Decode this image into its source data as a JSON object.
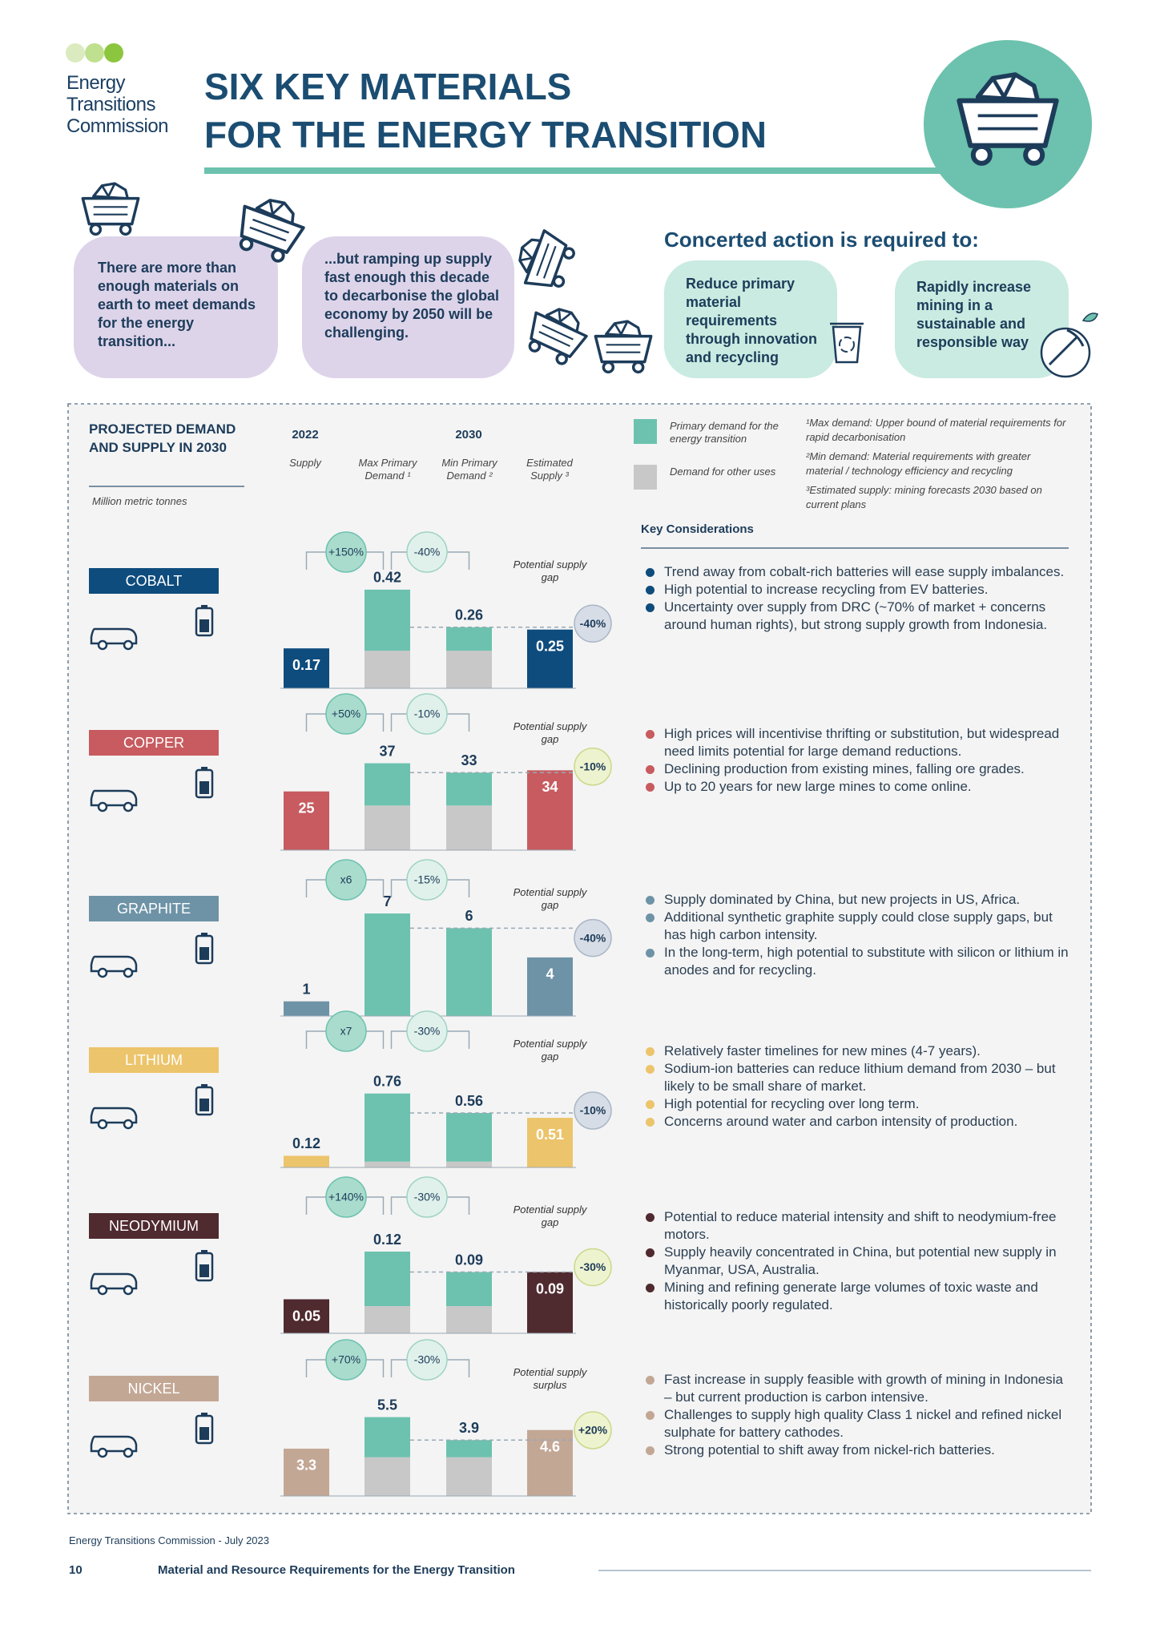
{
  "header": {
    "logo": [
      "Energy",
      "Transitions",
      "Commission"
    ],
    "title": [
      "SIX KEY MATERIALS",
      "FOR THE ENERGY TRANSITION"
    ]
  },
  "intro": {
    "statements": [
      "There are more than enough materials on earth to meet demands for the energy transition...",
      "...but ramping up supply fast enough this decade to decarbonise the global economy by 2050 will be challenging."
    ],
    "action_heading": "Concerted action is required to:",
    "actions": [
      "Reduce primary material requirements through innovation and recycling",
      "Rapidly increase mining in a sustainable and responsible way"
    ]
  },
  "panel": {
    "title": "PROJECTED DEMAND AND SUPPLY IN 2030",
    "units": "Million metric tonnes",
    "years": [
      "2022",
      "2030"
    ],
    "column_headers": [
      "Supply",
      "Max Primary Demand ¹",
      "Min Primary Demand ²",
      "Estimated Supply ³"
    ],
    "legend": [
      {
        "label": "Primary demand for the energy transition",
        "color": "#6cc2ae"
      },
      {
        "label": "Demand for other uses",
        "color": "#c8c8c8"
      }
    ],
    "footnotes": [
      "¹Max demand: Upper bound of material requirements for rapid decarbonisation",
      "²Min demand: Material requirements with greater material / technology efficiency and recycling",
      "³Estimated supply: mining forecasts 2030 based on current plans"
    ],
    "considerations_heading": "Key Considerations"
  },
  "chart_data": [
    {
      "type": "bar",
      "title": "COBALT",
      "color": "#0e4c7d",
      "ylim": [
        0,
        0.58
      ],
      "supply_2022": 0.17,
      "max_demand": {
        "primary": 0.26,
        "other": 0.16,
        "total_label": "0.42"
      },
      "min_demand": {
        "primary": 0.1,
        "other": 0.16,
        "total_label": "0.26"
      },
      "estimated_supply": 0.25,
      "change_to_max": "+150%",
      "change_to_min": "-40%",
      "gap_note": "Potential supply gap",
      "gap": "-40%",
      "considerations": [
        "Trend away from cobalt-rich batteries will ease supply imbalances.",
        "High potential to increase recycling from EV batteries.",
        "Uncertainty over supply from DRC (~70% of market + concerns around human rights), but strong supply growth from Indonesia."
      ]
    },
    {
      "type": "bar",
      "title": "COPPER",
      "color": "#c75b5f",
      "ylim": [
        0,
        58
      ],
      "supply_2022": 25,
      "max_demand": {
        "primary": 18,
        "other": 19,
        "total_label": "37"
      },
      "min_demand": {
        "primary": 14,
        "other": 19,
        "total_label": "33"
      },
      "estimated_supply": 34,
      "change_to_max": "+50%",
      "change_to_min": "-10%",
      "gap_note": "Potential supply gap",
      "gap": "-10%",
      "considerations": [
        "High prices will incentivise thrifting or substitution, but widespread need limits potential for large demand reductions.",
        "Declining production from existing mines, falling ore grades.",
        "Up to 20 years for new large mines to come online."
      ]
    },
    {
      "type": "bar",
      "title": "GRAPHITE",
      "color": "#6e93a7",
      "ylim": [
        0,
        9.3
      ],
      "supply_2022": 1,
      "max_demand": {
        "primary": 7,
        "other": 0,
        "total_label": "7"
      },
      "min_demand": {
        "primary": 6,
        "other": 0,
        "total_label": "6"
      },
      "estimated_supply": 4,
      "change_to_max": "x6",
      "change_to_min": "-15%",
      "gap_note": "Potential supply gap",
      "gap": "-40%",
      "considerations": [
        "Supply dominated by China, but new projects in US, Africa.",
        "Additional synthetic graphite supply could close supply gaps, but has high carbon intensity.",
        "In the long-term, high potential to substitute with silicon or lithium in anodes and for recycling."
      ]
    },
    {
      "type": "bar",
      "title": "LITHIUM",
      "color": "#ecc46b",
      "ylim": [
        0,
        1.4
      ],
      "supply_2022": 0.12,
      "max_demand": {
        "primary": 0.7,
        "other": 0.06,
        "total_label": "0.76"
      },
      "min_demand": {
        "primary": 0.5,
        "other": 0.06,
        "total_label": "0.56"
      },
      "estimated_supply": 0.51,
      "change_to_max": "x7",
      "change_to_min": "-30%",
      "gap_note": "Potential supply gap",
      "gap": "-10%",
      "considerations": [
        "Relatively faster timelines for new mines (4-7 years).",
        "Sodium-ion batteries can reduce lithium demand from 2030 – but likely to be small share of market.",
        "High potential for recycling over long term.",
        "Concerns around water and carbon intensity of production."
      ]
    },
    {
      "type": "bar",
      "title": "NEODYMIUM",
      "color": "#4f2a2f",
      "ylim": [
        0,
        0.2
      ],
      "supply_2022": 0.05,
      "max_demand": {
        "primary": 0.08,
        "other": 0.04,
        "total_label": "0.12"
      },
      "min_demand": {
        "primary": 0.05,
        "other": 0.04,
        "total_label": "0.09"
      },
      "estimated_supply": 0.09,
      "change_to_max": "+140%",
      "change_to_min": "-30%",
      "gap_note": "Potential supply gap",
      "gap": "-30%",
      "considerations": [
        "Potential to reduce material intensity and shift to neodymium-free motors.",
        "Supply heavily concentrated in China, but potential new supply in Myanmar, USA, Australia.",
        "Mining and refining generate large volumes of toxic waste and historically poorly regulated."
      ]
    },
    {
      "type": "bar",
      "title": "NICKEL",
      "color": "#c3a795",
      "ylim": [
        0,
        9.5
      ],
      "supply_2022": 3.3,
      "max_demand": {
        "primary": 2.8,
        "other": 2.7,
        "total_label": "5.5"
      },
      "min_demand": {
        "primary": 1.2,
        "other": 2.7,
        "total_label": "3.9"
      },
      "estimated_supply": 4.6,
      "change_to_max": "+70%",
      "change_to_min": "-30%",
      "gap_note": "Potential supply surplus",
      "gap": "+20%",
      "considerations": [
        "Fast increase in supply feasible with growth of mining in Indonesia – but current production is carbon intensive.",
        "Challenges to supply high quality Class 1 nickel and refined nickel sulphate for battery cathodes.",
        "Strong potential to shift away from nickel-rich batteries."
      ]
    }
  ],
  "footer": {
    "source": "Energy Transitions Commission - July 2023",
    "page": "10",
    "document": "Material and Resource Requirements for the Energy Transition"
  }
}
